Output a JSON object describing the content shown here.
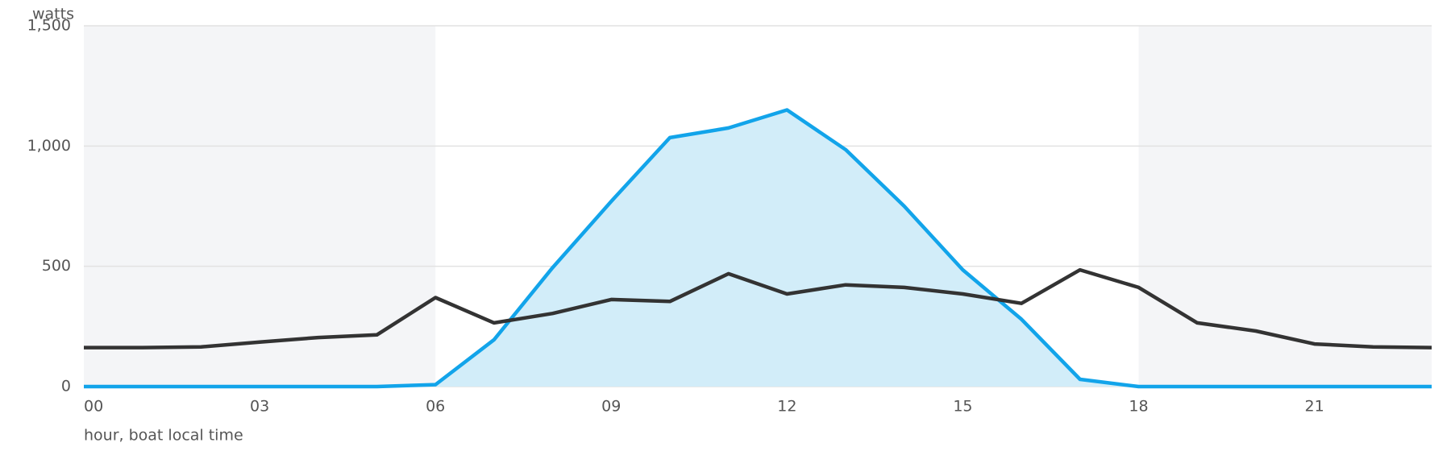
{
  "chart_data": {
    "type": "line",
    "y_label": "watts",
    "x_label": "hour, boat local time",
    "x": [
      0,
      1,
      2,
      3,
      4,
      5,
      6,
      7,
      8,
      9,
      10,
      11,
      12,
      13,
      14,
      15,
      16,
      17,
      18,
      19,
      20,
      21,
      22,
      23
    ],
    "series": [
      {
        "color": "#12a4ea",
        "area_color": "#d2edf9",
        "values": [
          0,
          0,
          0,
          0,
          0,
          0,
          8,
          195,
          495,
          770,
          1035,
          1075,
          1150,
          985,
          750,
          485,
          280,
          30,
          0,
          0,
          0,
          0,
          0,
          0
        ]
      },
      {
        "color": "#333333",
        "values": [
          162,
          162,
          165,
          185,
          204,
          215,
          370,
          265,
          304,
          362,
          354,
          469,
          385,
          423,
          412,
          385,
          346,
          485,
          412,
          265,
          231,
          177,
          165,
          162
        ]
      }
    ],
    "shaded_ranges": [
      [
        0,
        6
      ],
      [
        18,
        23
      ]
    ],
    "shade_color": "#f4f5f7",
    "xlim": [
      0,
      23
    ],
    "xticks": [
      {
        "value": 0,
        "label": "00"
      },
      {
        "value": 3,
        "label": "03"
      },
      {
        "value": 6,
        "label": "06"
      },
      {
        "value": 9,
        "label": "09"
      },
      12,
      15,
      18,
      21
    ],
    "ylim": [
      0,
      1500
    ],
    "yticks": [
      0,
      500,
      {
        "value": 1000,
        "label": "1,000"
      },
      {
        "value": 1500,
        "label": "1,500"
      }
    ],
    "grid": true
  }
}
